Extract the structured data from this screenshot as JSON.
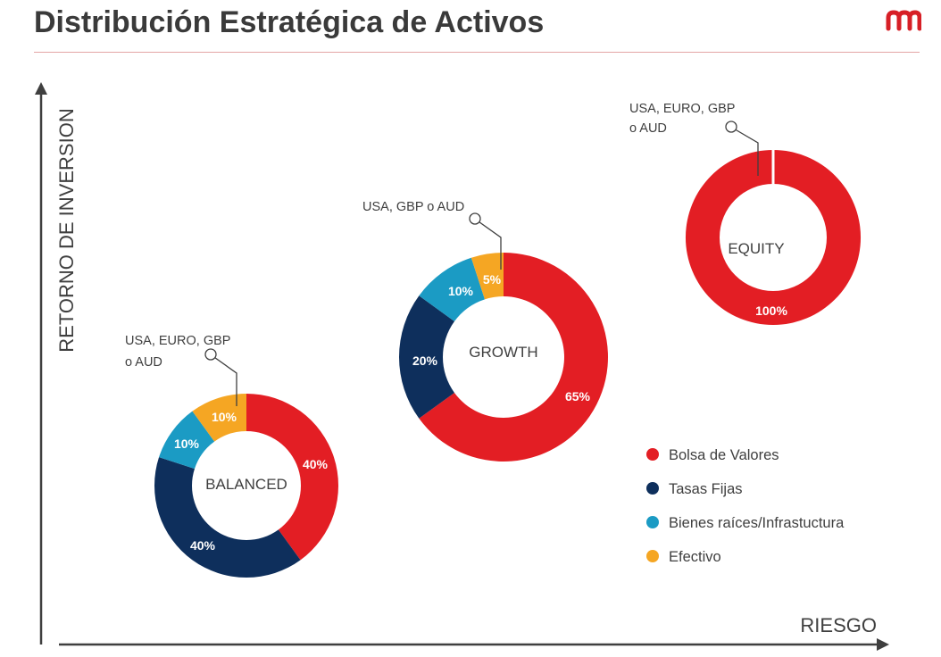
{
  "page": {
    "title": "Distribución Estratégica de Activos"
  },
  "brand": {
    "logo_name": "m-logo",
    "accent": "#d71f26"
  },
  "chart_data": {
    "type": "donut-scatter",
    "x_axis_label": "RIESGO",
    "y_axis_label": "RETORNO DE INVERSION",
    "categories": [
      {
        "name": "Bolsa de Valores",
        "color": "#e31e24"
      },
      {
        "name": "Tasas Fijas",
        "color": "#0e2f5c"
      },
      {
        "name": "Bienes raíces/Infrastuctura",
        "color": "#1b9bc4"
      },
      {
        "name": "Efectivo",
        "color": "#f5a623"
      }
    ],
    "portfolios": [
      {
        "name": "BALANCED",
        "annotation_lines": [
          "USA, EURO, GBP",
          "o AUD"
        ],
        "slices": [
          {
            "category": "Bolsa de Valores",
            "value": 40,
            "label": "40%"
          },
          {
            "category": "Tasas Fijas",
            "value": 40,
            "label": "40%"
          },
          {
            "category": "Bienes raíces/Infrastuctura",
            "value": 10,
            "label": "10%"
          },
          {
            "category": "Efectivo",
            "value": 10,
            "label": "10%"
          }
        ]
      },
      {
        "name": "GROWTH",
        "annotation_lines": [
          "USA, GBP o AUD"
        ],
        "slices": [
          {
            "category": "Bolsa de Valores",
            "value": 65,
            "label": "65%"
          },
          {
            "category": "Tasas Fijas",
            "value": 20,
            "label": "20%"
          },
          {
            "category": "Bienes raíces/Infrastuctura",
            "value": 10,
            "label": "10%"
          },
          {
            "category": "Efectivo",
            "value": 5,
            "label": "5%"
          }
        ]
      },
      {
        "name": "EQUITY",
        "annotation_lines": [
          "USA, EURO, GBP",
          "o AUD"
        ],
        "slices": [
          {
            "category": "Bolsa de Valores",
            "value": 100,
            "label": "100%"
          }
        ]
      }
    ]
  }
}
